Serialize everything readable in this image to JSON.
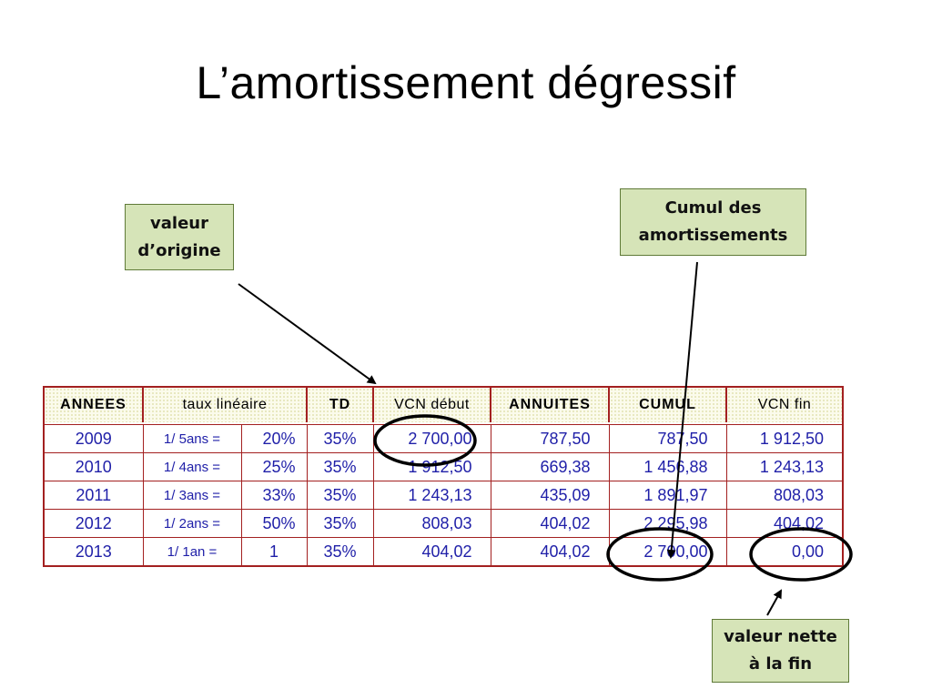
{
  "title": "L’amortissement dégressif",
  "callouts": {
    "origin": {
      "line1": "valeur",
      "line2": "d’origine"
    },
    "cumul": {
      "line1": "Cumul des",
      "line2": "amortissements"
    },
    "net": {
      "line1": "valeur nette",
      "line2": "à la fin"
    }
  },
  "table": {
    "headers": [
      "ANNEES",
      "taux linéaire",
      "TD",
      "VCN début",
      "ANNUITES",
      "CUMUL",
      "VCN fin"
    ],
    "rows": [
      {
        "year": "2009",
        "rate_label": "1/ 5ans =",
        "rate": "20%",
        "td": "35%",
        "vcn_start": "2 700,00",
        "annuity": "787,50",
        "cumul": "787,50",
        "vcn_end": "1 912,50"
      },
      {
        "year": "2010",
        "rate_label": "1/ 4ans =",
        "rate": "25%",
        "td": "35%",
        "vcn_start": "1 912,50",
        "annuity": "669,38",
        "cumul": "1 456,88",
        "vcn_end": "1 243,13"
      },
      {
        "year": "2011",
        "rate_label": "1/ 3ans =",
        "rate": "33%",
        "td": "35%",
        "vcn_start": "1 243,13",
        "annuity": "435,09",
        "cumul": "1 891,97",
        "vcn_end": "808,03"
      },
      {
        "year": "2012",
        "rate_label": "1/ 2ans =",
        "rate": "50%",
        "td": "35%",
        "vcn_start": "808,03",
        "annuity": "404,02",
        "cumul": "2 295,98",
        "vcn_end": "404,02"
      },
      {
        "year": "2013",
        "rate_label": "1/ 1an =",
        "rate": "1",
        "td": "35%",
        "vcn_start": "404,02",
        "annuity": "404,02",
        "cumul": "2 700,00",
        "vcn_end": "0,00"
      }
    ]
  }
}
